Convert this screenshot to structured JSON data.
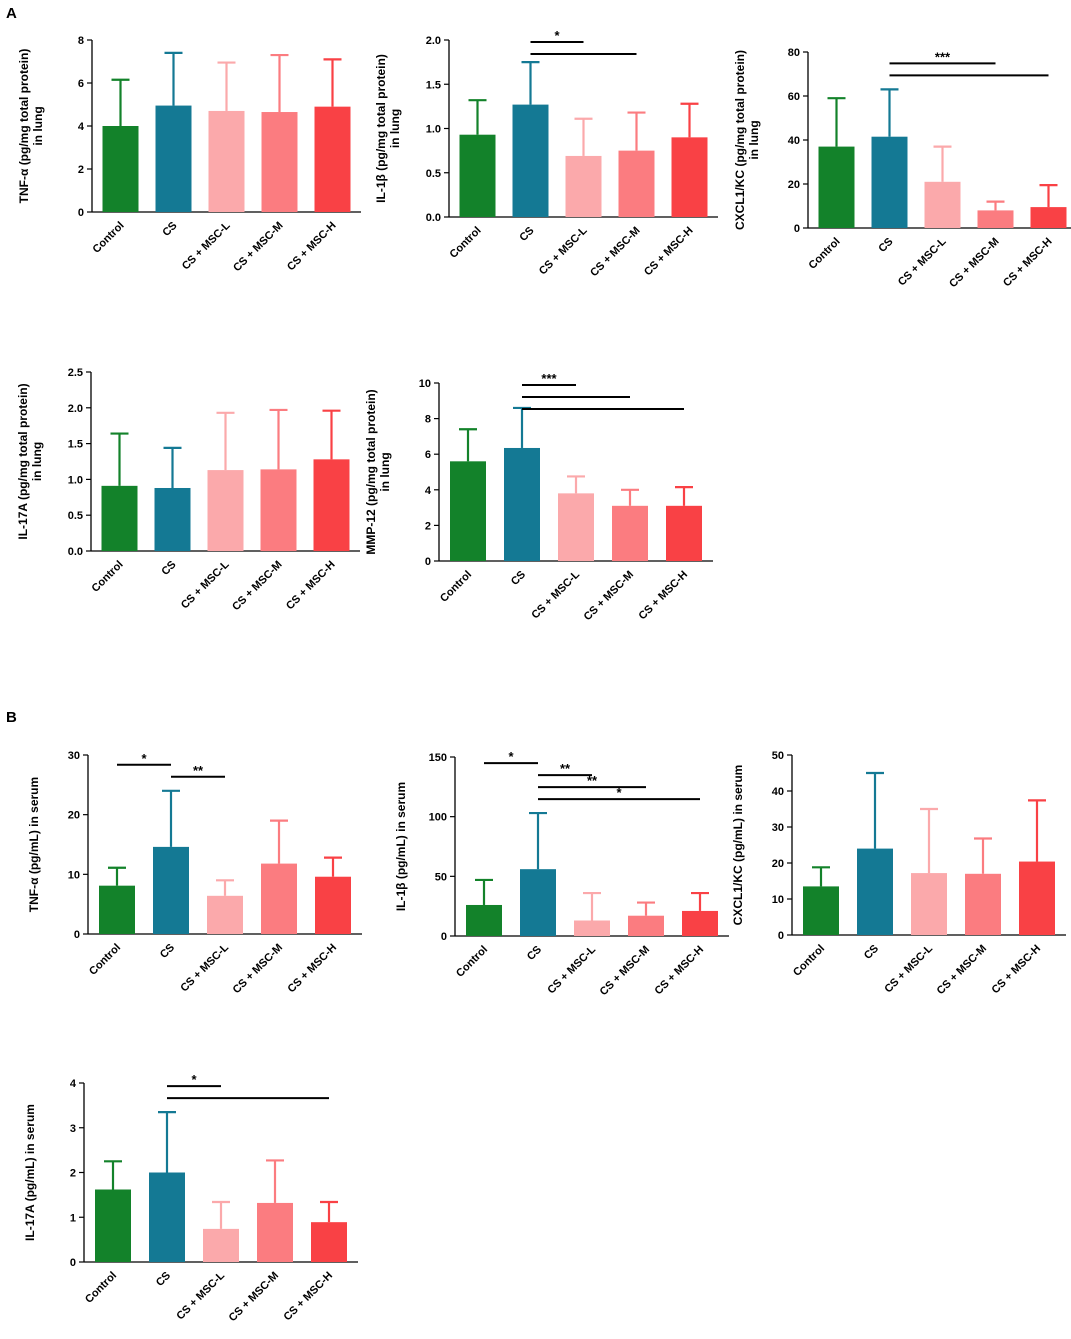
{
  "colors": {
    "Control": "#13822a",
    "CS": "#147994",
    "CS + MSC-L": "#fba9ab",
    "CS + MSC-M": "#fb7c80",
    "CS + MSC-H": "#f94145",
    "axis": "#000000"
  },
  "panels": [
    {
      "id": "A",
      "label": "A"
    },
    {
      "id": "B",
      "label": "B"
    }
  ],
  "chart_data": [
    {
      "panel": "A",
      "type": "bar",
      "categories": [
        "Control",
        "CS",
        "CS + MSC-L",
        "CS + MSC-M",
        "CS + MSC-H"
      ],
      "values": [
        4.0,
        4.95,
        4.7,
        4.65,
        4.9
      ],
      "errors": [
        2.15,
        2.45,
        2.25,
        2.65,
        2.2
      ],
      "ylabel_lines": [
        "TNF-α (pg/mg total protein)",
        "in lung"
      ],
      "ylim": [
        0,
        8
      ],
      "yticks": [
        "0",
        "2",
        "4",
        "6",
        "8"
      ],
      "significance": []
    },
    {
      "panel": "A",
      "type": "bar",
      "categories": [
        "Control",
        "CS",
        "CS + MSC-L",
        "CS + MSC-M",
        "CS + MSC-H"
      ],
      "values": [
        0.93,
        1.27,
        0.69,
        0.75,
        0.9
      ],
      "errors": [
        0.39,
        0.48,
        0.42,
        0.43,
        0.38
      ],
      "ylabel_lines": [
        "IL-1β (pg/mg total protein)",
        "in lung"
      ],
      "ylim": [
        0,
        2
      ],
      "yticks": [
        "0.0",
        "0.5",
        "1.0",
        "1.5",
        "2.0"
      ],
      "significance": [
        {
          "from": 1,
          "to": 2,
          "label": "*"
        },
        {
          "from": 1,
          "to": 3,
          "label": ""
        }
      ]
    },
    {
      "panel": "A",
      "type": "bar",
      "categories": [
        "Control",
        "CS",
        "CS + MSC-L",
        "CS + MSC-M",
        "CS + MSC-H"
      ],
      "values": [
        37,
        41.5,
        21,
        8,
        9.5
      ],
      "errors": [
        22,
        21.5,
        16,
        4,
        10
      ],
      "ylabel_lines": [
        "CXCL1/KC (pg/mg total protein)",
        "in lung"
      ],
      "ylim": [
        0,
        80
      ],
      "yticks": [
        "0",
        "20",
        "40",
        "60",
        "80"
      ],
      "significance": [
        {
          "from": 1,
          "to": 3,
          "label": "***"
        },
        {
          "from": 1,
          "to": 4,
          "label": ""
        }
      ]
    },
    {
      "panel": "A",
      "type": "bar",
      "categories": [
        "Control",
        "CS",
        "CS + MSC-L",
        "CS + MSC-M",
        "CS + MSC-H"
      ],
      "values": [
        0.91,
        0.88,
        1.13,
        1.14,
        1.28
      ],
      "errors": [
        0.73,
        0.56,
        0.8,
        0.83,
        0.68
      ],
      "ylabel_lines": [
        "IL-17A (pg/mg total protein)",
        "in lung"
      ],
      "ylim": [
        0,
        2.5
      ],
      "yticks": [
        "0.0",
        "0.5",
        "1.0",
        "1.5",
        "2.0",
        "2.5"
      ],
      "significance": []
    },
    {
      "panel": "A",
      "type": "bar",
      "categories": [
        "Control",
        "CS",
        "CS + MSC-L",
        "CS + MSC-M",
        "CS + MSC-H"
      ],
      "values": [
        5.6,
        6.35,
        3.8,
        3.1,
        3.1
      ],
      "errors": [
        1.8,
        2.25,
        0.95,
        0.9,
        1.05
      ],
      "ylabel_lines": [
        "MMP-12 (pg/mg total protein)",
        "in lung"
      ],
      "ylim": [
        0,
        10
      ],
      "yticks": [
        "0",
        "2",
        "4",
        "6",
        "8",
        "10"
      ],
      "significance": [
        {
          "from": 1,
          "to": 2,
          "label": "***"
        },
        {
          "from": 1,
          "to": 3,
          "label": ""
        },
        {
          "from": 1,
          "to": 4,
          "label": ""
        }
      ]
    },
    {
      "panel": "B",
      "type": "bar",
      "categories": [
        "Control",
        "CS",
        "CS + MSC-L",
        "CS + MSC-M",
        "CS + MSC-H"
      ],
      "values": [
        8.1,
        14.6,
        6.4,
        11.8,
        9.6
      ],
      "errors": [
        3.0,
        9.4,
        2.6,
        7.2,
        3.2
      ],
      "ylabel_lines": [
        "TNF-α (pg/mL) in serum"
      ],
      "ylim": [
        0,
        30
      ],
      "yticks": [
        "0",
        "10",
        "20",
        "30"
      ],
      "significance": [
        {
          "from": 0,
          "to": 1,
          "label": "*"
        },
        {
          "from": 1,
          "to": 2,
          "label": "**"
        }
      ]
    },
    {
      "panel": "B",
      "type": "bar",
      "categories": [
        "Control",
        "CS",
        "CS + MSC-L",
        "CS + MSC-M",
        "CS + MSC-H"
      ],
      "values": [
        26,
        56,
        13,
        17,
        21
      ],
      "errors": [
        21,
        47,
        23,
        11,
        15
      ],
      "ylabel_lines": [
        "IL-1β (pg/mL) in serum"
      ],
      "ylim": [
        0,
        150
      ],
      "yticks": [
        "0",
        "50",
        "100",
        "150"
      ],
      "significance": [
        {
          "from": 0,
          "to": 1,
          "label": "*"
        },
        {
          "from": 1,
          "to": 2,
          "label": "**"
        },
        {
          "from": 1,
          "to": 3,
          "label": "**"
        },
        {
          "from": 1,
          "to": 4,
          "label": "*"
        }
      ]
    },
    {
      "panel": "B",
      "type": "bar",
      "categories": [
        "Control",
        "CS",
        "CS + MSC-L",
        "CS + MSC-M",
        "CS + MSC-H"
      ],
      "values": [
        13.5,
        24,
        17.2,
        17,
        20.4
      ],
      "errors": [
        5.3,
        21,
        17.8,
        9.8,
        17
      ],
      "ylabel_lines": [
        "CXCL1/KC (pg/mL) in serum"
      ],
      "ylim": [
        0,
        50
      ],
      "yticks": [
        "0",
        "10",
        "20",
        "30",
        "40",
        "50"
      ],
      "significance": []
    },
    {
      "panel": "B",
      "type": "bar",
      "categories": [
        "Control",
        "CS",
        "CS + MSC-L",
        "CS + MSC-M",
        "CS + MSC-H"
      ],
      "values": [
        1.62,
        2.0,
        0.74,
        1.32,
        0.89
      ],
      "errors": [
        0.63,
        1.35,
        0.6,
        0.95,
        0.45
      ],
      "ylabel_lines": [
        "IL-17A (pg/mL) in serum"
      ],
      "ylim": [
        0,
        4
      ],
      "yticks": [
        "0",
        "1",
        "2",
        "3",
        "4"
      ],
      "significance": [
        {
          "from": 1,
          "to": 2,
          "label": "*"
        },
        {
          "from": 1,
          "to": 4,
          "label": ""
        }
      ]
    }
  ]
}
